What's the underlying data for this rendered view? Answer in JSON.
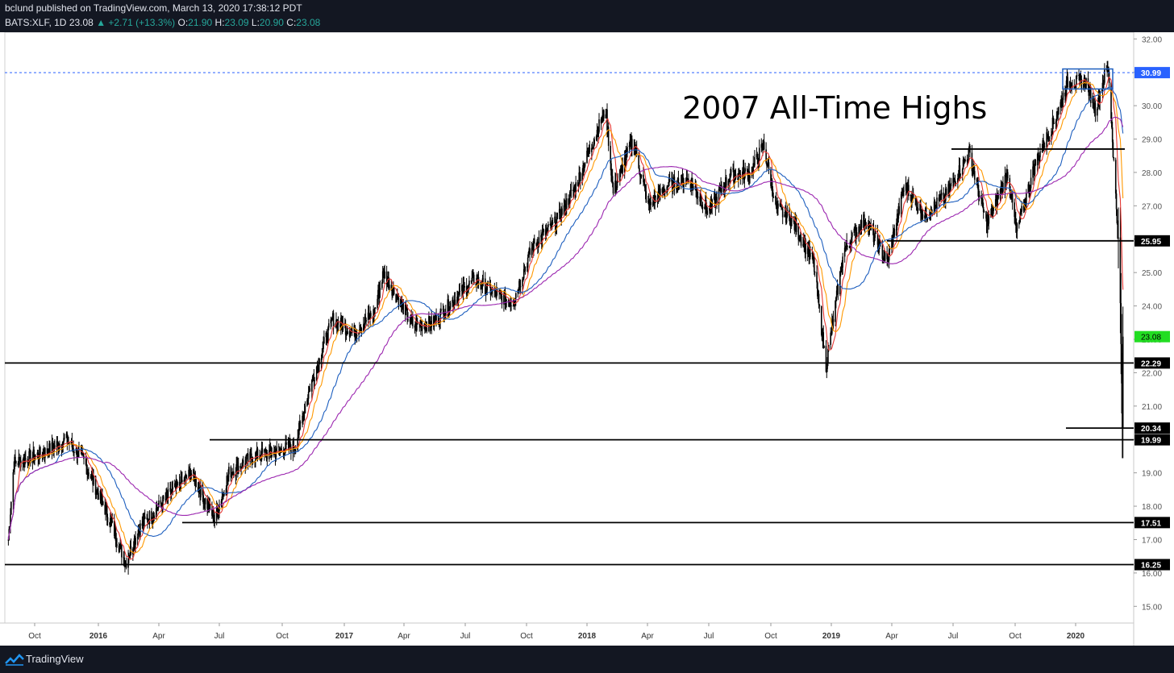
{
  "header": {
    "publisher_line": "bclund published on TradingView.com, March 13, 2020 17:38:12 PDT",
    "symbol": "BATS:XLF, 1D",
    "last": "23.08",
    "change": "▲ +2.71 (+13.3%)",
    "o_label": "O:",
    "o_value": "21.90",
    "h_label": "H:",
    "h_value": "23.09",
    "l_label": "L:",
    "l_value": "20.90",
    "c_label": "C:",
    "c_value": "23.08"
  },
  "footer": {
    "brand": "TradingView",
    "logo_icon": "tradingview-logo-icon"
  },
  "colors": {
    "candles": "#000000",
    "ma_red": "#e53935",
    "ma_orange": "#ff9800",
    "ma_blue": "#1e5fbf",
    "ma_purple": "#9c27b0",
    "dashed_level": "#2962ff",
    "last_price_label": "#22dd22"
  },
  "chart_data": {
    "type": "candlestick",
    "title": "",
    "symbol": "BATS:XLF",
    "interval": "1D",
    "annotation": "2007 All-Time Highs",
    "ylim": [
      14.5,
      32.2
    ],
    "y_ticks": [
      "32.00",
      "31.00",
      "30.00",
      "29.00",
      "28.00",
      "27.00",
      "26.00",
      "25.00",
      "24.00",
      "23.00",
      "22.00",
      "21.00",
      "20.00",
      "19.00",
      "18.00",
      "17.00",
      "16.00",
      "15.00"
    ],
    "x_ticks": [
      "Oct",
      "2016",
      "Apr",
      "Jul",
      "Oct",
      "2017",
      "Apr",
      "Jul",
      "Oct",
      "2018",
      "Apr",
      "Jul",
      "Oct",
      "2019",
      "Apr",
      "Jul",
      "Oct",
      "2020"
    ],
    "x_tick_dates": [
      "2015-10-01",
      "2016-01-01",
      "2016-04-01",
      "2016-07-01",
      "2016-10-01",
      "2017-01-01",
      "2017-04-01",
      "2017-07-01",
      "2017-10-01",
      "2018-01-01",
      "2018-04-01",
      "2018-07-01",
      "2018-10-01",
      "2019-01-01",
      "2019-04-01",
      "2019-07-01",
      "2019-10-01",
      "2020-01-01"
    ],
    "price_path": [
      [
        "2015-08-24",
        17.0
      ],
      [
        "2015-09-01",
        19.3
      ],
      [
        "2015-10-15",
        19.6
      ],
      [
        "2015-11-15",
        20.0
      ],
      [
        "2015-12-10",
        19.4
      ],
      [
        "2016-01-20",
        17.5
      ],
      [
        "2016-02-11",
        16.3
      ],
      [
        "2016-03-01",
        17.3
      ],
      [
        "2016-04-15",
        18.3
      ],
      [
        "2016-05-20",
        19.0
      ],
      [
        "2016-06-24",
        17.6
      ],
      [
        "2016-07-15",
        19.0
      ],
      [
        "2016-08-20",
        19.5
      ],
      [
        "2016-09-15",
        19.6
      ],
      [
        "2016-10-20",
        19.8
      ],
      [
        "2016-11-10",
        21.5
      ],
      [
        "2016-12-01",
        22.8
      ],
      [
        "2016-12-15",
        23.6
      ],
      [
        "2017-01-15",
        23.2
      ],
      [
        "2017-02-15",
        23.8
      ],
      [
        "2017-03-01",
        25.0
      ],
      [
        "2017-04-15",
        23.4
      ],
      [
        "2017-05-15",
        23.5
      ],
      [
        "2017-06-15",
        24.2
      ],
      [
        "2017-07-15",
        24.8
      ],
      [
        "2017-08-20",
        24.3
      ],
      [
        "2017-09-10",
        24.1
      ],
      [
        "2017-10-10",
        25.8
      ],
      [
        "2017-11-15",
        26.5
      ],
      [
        "2017-12-15",
        27.6
      ],
      [
        "2018-01-29",
        29.9
      ],
      [
        "2018-02-09",
        27.4
      ],
      [
        "2018-03-10",
        29.0
      ],
      [
        "2018-04-02",
        27.0
      ],
      [
        "2018-05-01",
        27.6
      ],
      [
        "2018-06-01",
        27.8
      ],
      [
        "2018-07-01",
        26.8
      ],
      [
        "2018-08-01",
        27.9
      ],
      [
        "2018-09-01",
        28.0
      ],
      [
        "2018-09-20",
        28.8
      ],
      [
        "2018-10-10",
        26.9
      ],
      [
        "2018-11-01",
        26.6
      ],
      [
        "2018-12-05",
        25.3
      ],
      [
        "2018-12-24",
        22.2
      ],
      [
        "2019-01-20",
        25.7
      ],
      [
        "2019-02-20",
        26.6
      ],
      [
        "2019-03-25",
        25.3
      ],
      [
        "2019-04-20",
        27.6
      ],
      [
        "2019-05-20",
        26.7
      ],
      [
        "2019-06-20",
        27.3
      ],
      [
        "2019-07-25",
        28.6
      ],
      [
        "2019-08-20",
        26.4
      ],
      [
        "2019-09-20",
        28.0
      ],
      [
        "2019-10-03",
        26.2
      ],
      [
        "2019-11-01",
        28.3
      ],
      [
        "2019-12-01",
        29.6
      ],
      [
        "2019-12-20",
        30.7
      ],
      [
        "2020-01-17",
        30.7
      ],
      [
        "2020-01-31",
        29.9
      ],
      [
        "2020-02-14",
        30.9
      ],
      [
        "2020-02-20",
        31.1
      ],
      [
        "2020-02-28",
        28.3
      ],
      [
        "2020-03-06",
        25.9
      ],
      [
        "2020-03-09",
        24.0
      ],
      [
        "2020-03-12",
        20.4
      ],
      [
        "2020-03-13",
        23.08
      ]
    ],
    "horizontal_levels": [
      {
        "price": 30.99,
        "label": "30.99",
        "style": "dashed"
      },
      {
        "price": 25.95,
        "label": "25.95",
        "style": "solid"
      },
      {
        "price": 22.29,
        "label": "22.29",
        "style": "solid"
      },
      {
        "price": 20.34,
        "label": "20.34",
        "style": "solid"
      },
      {
        "price": 19.99,
        "label": "19.99",
        "style": "solid"
      },
      {
        "price": 17.51,
        "label": "17.51",
        "style": "solid"
      },
      {
        "price": 16.25,
        "label": "16.25",
        "style": "solid"
      },
      {
        "price": 28.7,
        "label": "",
        "style": "solid"
      }
    ],
    "last_price_label": "23.08"
  }
}
